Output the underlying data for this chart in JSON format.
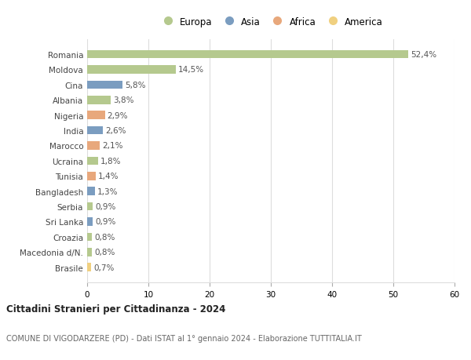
{
  "countries": [
    "Romania",
    "Moldova",
    "Cina",
    "Albania",
    "Nigeria",
    "India",
    "Marocco",
    "Ucraina",
    "Tunisia",
    "Bangladesh",
    "Serbia",
    "Sri Lanka",
    "Croazia",
    "Macedonia d/N.",
    "Brasile"
  ],
  "values": [
    52.4,
    14.5,
    5.8,
    3.8,
    2.9,
    2.6,
    2.1,
    1.8,
    1.4,
    1.3,
    0.9,
    0.9,
    0.8,
    0.8,
    0.7
  ],
  "labels": [
    "52,4%",
    "14,5%",
    "5,8%",
    "3,8%",
    "2,9%",
    "2,6%",
    "2,1%",
    "1,8%",
    "1,4%",
    "1,3%",
    "0,9%",
    "0,9%",
    "0,8%",
    "0,8%",
    "0,7%"
  ],
  "colors": [
    "#b5c98e",
    "#b5c98e",
    "#7b9dc0",
    "#b5c98e",
    "#e8a87c",
    "#7b9dc0",
    "#e8a87c",
    "#b5c98e",
    "#e8a87c",
    "#7b9dc0",
    "#b5c98e",
    "#7b9dc0",
    "#b5c98e",
    "#b5c98e",
    "#f0d080"
  ],
  "legend_labels": [
    "Europa",
    "Asia",
    "Africa",
    "America"
  ],
  "legend_colors": [
    "#b5c98e",
    "#7b9dc0",
    "#e8a87c",
    "#f0d080"
  ],
  "title": "Cittadini Stranieri per Cittadinanza - 2024",
  "subtitle": "COMUNE DI VIGODARZERE (PD) - Dati ISTAT al 1° gennaio 2024 - Elaborazione TUTTITALIA.IT",
  "xlim": [
    0,
    60
  ],
  "xticks": [
    0,
    10,
    20,
    30,
    40,
    50,
    60
  ],
  "background_color": "#ffffff",
  "grid_color": "#dddddd",
  "bar_height": 0.55
}
